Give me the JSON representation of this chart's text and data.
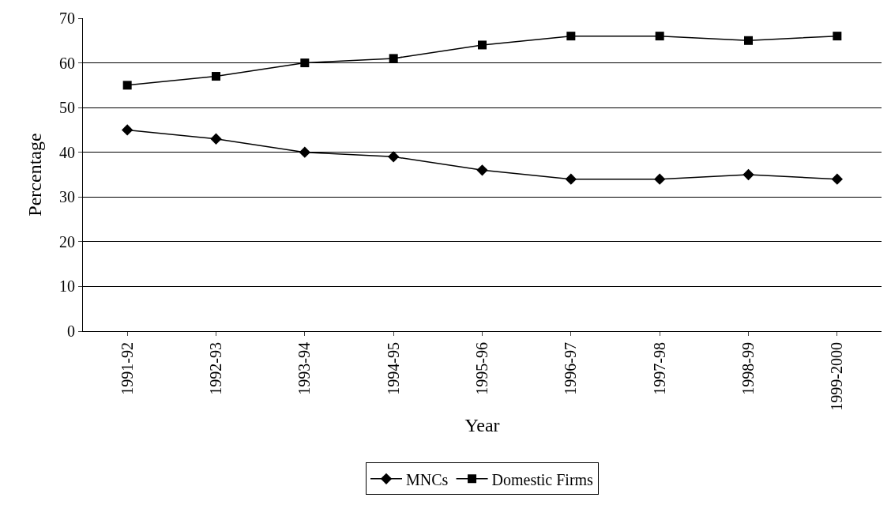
{
  "chart_data": {
    "type": "line",
    "xlabel": "Year",
    "ylabel": "Percentage",
    "categories": [
      "1991-92",
      "1992-93",
      "1993-94",
      "1994-95",
      "1995-96",
      "1996-97",
      "1997-98",
      "1998-99",
      "1999-2000"
    ],
    "series": [
      {
        "name": "MNCs",
        "color": "#000000",
        "marker": "diamond",
        "values": [
          45,
          43,
          40,
          39,
          36,
          34,
          34,
          35,
          34
        ]
      },
      {
        "name": "Domestic Firms",
        "color": "#000000",
        "marker": "square",
        "values": [
          55,
          57,
          60,
          61,
          64,
          66,
          66,
          65,
          66
        ]
      }
    ],
    "ylim": [
      0,
      70
    ],
    "yticks": [
      0,
      10,
      20,
      30,
      40,
      50,
      60,
      70
    ],
    "grid": "y",
    "legend": "bottom",
    "line_style": "solid"
  }
}
